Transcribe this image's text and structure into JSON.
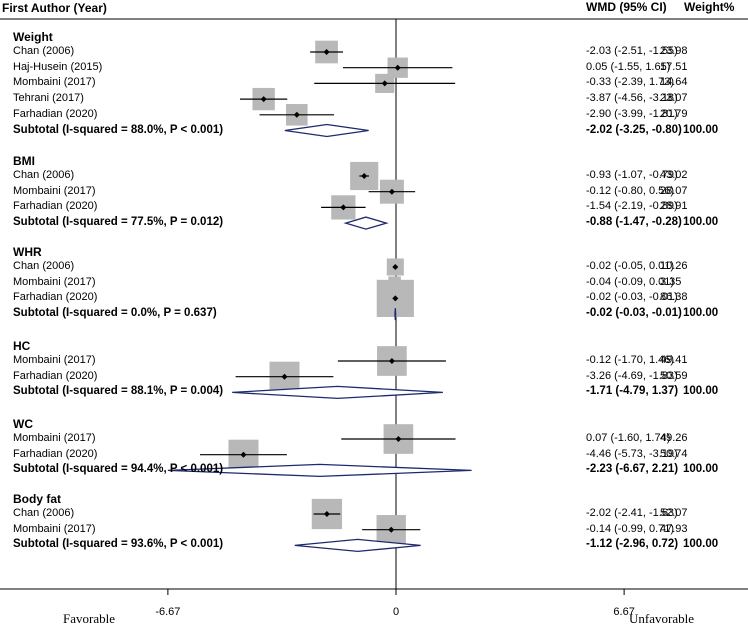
{
  "chart_data": {
    "type": "forest",
    "header": {
      "study": "First Author (Year)",
      "wmd": "WMD (95% CI)",
      "weight": "Weight%"
    },
    "xlim": [
      -8.5,
      7.8
    ],
    "ticks": [
      {
        "value": -6.67,
        "label": "-6.67"
      },
      {
        "value": 0,
        "label": "0"
      },
      {
        "value": 6.67,
        "label": "6.67"
      }
    ],
    "footer": {
      "left": "Favorable",
      "right": "Unfavorable"
    },
    "groups": [
      {
        "name": "Weight",
        "studies": [
          {
            "label": "Chan (2006)",
            "est": -2.03,
            "lo": -2.51,
            "hi": -1.55,
            "ci": "-2.03 (-2.51, -1.55)",
            "weight": "23.98"
          },
          {
            "label": "Haj-Husein (2015)",
            "est": 0.05,
            "lo": -1.55,
            "hi": 1.65,
            "ci": "0.05 (-1.55, 1.65)",
            "weight": "17.51"
          },
          {
            "label": "Mombaini (2017)",
            "est": -0.33,
            "lo": -2.39,
            "hi": 1.73,
            "ci": "-0.33 (-2.39, 1.73)",
            "weight": "14.64"
          },
          {
            "label": "Tehrani (2017)",
            "est": -3.87,
            "lo": -4.56,
            "hi": -3.18,
            "ci": "-3.87 (-4.56, -3.18)",
            "weight": "23.07"
          },
          {
            "label": "Farhadian (2020)",
            "est": -2.9,
            "lo": -3.99,
            "hi": -1.81,
            "ci": "-2.90 (-3.99, -1.81)",
            "weight": "20.79"
          }
        ],
        "subtotal": {
          "label": "Subtotal  (I-squared = 88.0%, P < 0.001)",
          "est": -2.02,
          "lo": -3.25,
          "hi": -0.8,
          "ci": "-2.02 (-3.25, -0.80)",
          "weight": "100.00"
        }
      },
      {
        "name": "BMI",
        "studies": [
          {
            "label": "Chan (2006)",
            "est": -0.93,
            "lo": -1.07,
            "hi": -0.79,
            "ci": "-0.93 (-1.07, -0.79)",
            "weight": "43.02"
          },
          {
            "label": "Mombaini (2017)",
            "est": -0.12,
            "lo": -0.8,
            "hi": 0.56,
            "ci": "-0.12 (-0.80, 0.56)",
            "weight": "28.07"
          },
          {
            "label": "Farhadian (2020)",
            "est": -1.54,
            "lo": -2.19,
            "hi": -0.89,
            "ci": "-1.54 (-2.19, -0.89)",
            "weight": "28.91"
          }
        ],
        "subtotal": {
          "label": "Subtotal  (I-squared = 77.5%, P = 0.012)",
          "est": -0.88,
          "lo": -1.47,
          "hi": -0.28,
          "ci": "-0.88 (-1.47, -0.28)",
          "weight": "100.00"
        }
      },
      {
        "name": "WHR",
        "studies": [
          {
            "label": "Chan (2006)",
            "est": -0.02,
            "lo": -0.05,
            "hi": 0.01,
            "ci": "-0.02 (-0.05, 0.01)",
            "weight": "10.26"
          },
          {
            "label": "Mombaini (2017)",
            "est": -0.04,
            "lo": -0.09,
            "hi": 0.01,
            "ci": "-0.04 (-0.09, 0.01)",
            "weight": "3.35"
          },
          {
            "label": "Farhadian (2020)",
            "est": -0.02,
            "lo": -0.03,
            "hi": -0.01,
            "ci": "-0.02 (-0.03, -0.01)",
            "weight": "86.38"
          }
        ],
        "subtotal": {
          "label": "Subtotal  (I-squared = 0.0%, P = 0.637)",
          "est": -0.02,
          "lo": -0.03,
          "hi": -0.01,
          "ci": "-0.02 (-0.03, -0.01)",
          "weight": "100.00"
        }
      },
      {
        "name": "HC",
        "studies": [
          {
            "label": "Mombaini (2017)",
            "est": -0.12,
            "lo": -1.7,
            "hi": 1.46,
            "ci": "-0.12 (-1.70, 1.46)",
            "weight": "49.41"
          },
          {
            "label": "Farhadian (2020)",
            "est": -3.26,
            "lo": -4.69,
            "hi": -1.83,
            "ci": "-3.26 (-4.69, -1.83)",
            "weight": "50.59"
          }
        ],
        "subtotal": {
          "label": "Subtotal  (I-squared = 88.1%, P = 0.004)",
          "est": -1.71,
          "lo": -4.79,
          "hi": 1.37,
          "ci": "-1.71 (-4.79, 1.37)",
          "weight": "100.00"
        }
      },
      {
        "name": "WC",
        "studies": [
          {
            "label": "Mombaini (2017)",
            "est": 0.07,
            "lo": -1.6,
            "hi": 1.74,
            "ci": "0.07 (-1.60, 1.74)",
            "weight": "49.26"
          },
          {
            "label": "Farhadian (2020)",
            "est": -4.46,
            "lo": -5.73,
            "hi": -3.19,
            "ci": "-4.46 (-5.73, -3.19)",
            "weight": "50.74"
          }
        ],
        "subtotal": {
          "label": "Subtotal  (I-squared = 94.4%, P < 0.001)",
          "est": -2.23,
          "lo": -6.67,
          "hi": 2.21,
          "ci": "-2.23 (-6.67, 2.21)",
          "weight": "100.00"
        }
      },
      {
        "name": "Body fat",
        "studies": [
          {
            "label": "Chan (2006)",
            "est": -2.02,
            "lo": -2.41,
            "hi": -1.63,
            "ci": "-2.02 (-2.41, -1.63)",
            "weight": "52.07"
          },
          {
            "label": "Mombaini (2017)",
            "est": -0.14,
            "lo": -0.99,
            "hi": 0.71,
            "ci": "-0.14 (-0.99, 0.71)",
            "weight": "47.93"
          }
        ],
        "subtotal": {
          "label": "Subtotal  (I-squared = 93.6%, P < 0.001)",
          "est": -1.12,
          "lo": -2.96,
          "hi": 0.72,
          "ci": "-1.12 (-2.96, 0.72)",
          "weight": "100.00"
        }
      }
    ]
  }
}
